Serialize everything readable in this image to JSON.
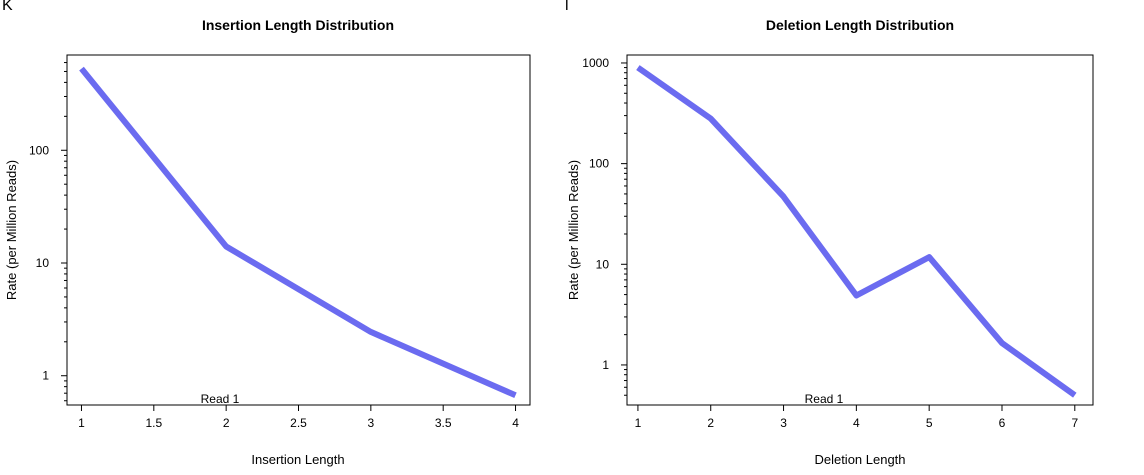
{
  "chart_data": [
    {
      "panel_label": "K",
      "type": "line",
      "title": "Insertion Length Distribution",
      "xlabel": "Insertion Length",
      "ylabel": "Rate (per Million Reads)",
      "yscale": "log",
      "xlim": [
        0.9,
        4.1
      ],
      "ylim": [
        0.55,
        700
      ],
      "x_ticks": [
        1,
        1.5,
        2,
        2.5,
        3,
        3.5,
        4
      ],
      "x_tick_labels": [
        "1",
        "1.5",
        "2",
        "2.5",
        "3",
        "3.5",
        "4"
      ],
      "y_ticks": [
        1,
        10,
        100
      ],
      "y_tick_labels": [
        "1",
        "10",
        "100"
      ],
      "annotation": "Read 1",
      "line_color": "#6b6bf0",
      "grid": false,
      "series": [
        {
          "x": [
            1,
            2,
            3,
            4
          ],
          "y": [
            530,
            14,
            2.45,
            0.67
          ]
        }
      ]
    },
    {
      "panel_label": "l",
      "type": "line",
      "title": "Deletion Length Distribution",
      "xlabel": "Deletion Length",
      "ylabel": "Rate (per Million Reads)",
      "yscale": "log",
      "xlim": [
        0.85,
        7.25
      ],
      "ylim": [
        0.4,
        1200
      ],
      "x_ticks": [
        1,
        2,
        3,
        4,
        5,
        6,
        7
      ],
      "x_tick_labels": [
        "1",
        "2",
        "3",
        "4",
        "5",
        "6",
        "7"
      ],
      "y_ticks": [
        1,
        10,
        100,
        1000
      ],
      "y_tick_labels": [
        "1",
        "10",
        "100",
        "1000"
      ],
      "annotation": "Read 1",
      "line_color": "#6b6bf0",
      "grid": false,
      "series": [
        {
          "x": [
            1,
            2,
            3,
            4,
            5,
            6,
            7
          ],
          "y": [
            900,
            280,
            47,
            4.9,
            11.8,
            1.65,
            0.5
          ]
        }
      ]
    }
  ]
}
